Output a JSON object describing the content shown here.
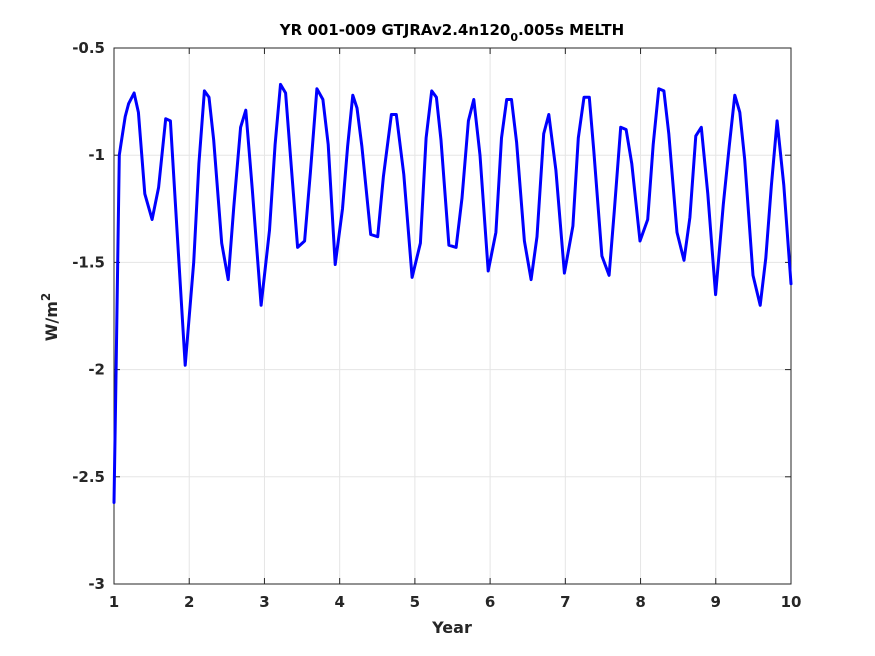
{
  "chart_data": {
    "type": "line",
    "title_main": "YR 001-009 GTJRAv2.4n120",
    "title_sub": "0",
    "title_tail": ".005s MELTH",
    "xlabel": "Year",
    "ylabel_base": "W/m",
    "ylabel_sup": "2",
    "xlim": [
      1,
      10
    ],
    "ylim": [
      -3,
      -0.5
    ],
    "x_ticks": [
      1,
      2,
      3,
      4,
      5,
      6,
      7,
      8,
      9,
      10
    ],
    "x_tick_labels": [
      "1",
      "2",
      "3",
      "4",
      "5",
      "6",
      "7",
      "8",
      "9",
      "10"
    ],
    "y_ticks": [
      -3,
      -2.5,
      -2,
      -1.5,
      -1,
      -0.5
    ],
    "y_tick_labels": [
      "-3",
      "-2.5",
      "-2",
      "-1.5",
      "-1",
      "-0.5"
    ],
    "grid": true,
    "colors": {
      "line": "#0000ff",
      "grid": "#e5e5e5",
      "axis": "#262626"
    },
    "series": [
      {
        "x": [
          1.0,
          1.028,
          1.071,
          1.092,
          1.149,
          1.194,
          1.267,
          1.324,
          1.41,
          1.507,
          1.593,
          1.687,
          1.75,
          1.838,
          1.947,
          2.059,
          2.128,
          2.202,
          2.263,
          2.326,
          2.432,
          2.518,
          2.593,
          2.683,
          2.752,
          2.839,
          2.956,
          3.067,
          3.142,
          3.213,
          3.281,
          3.345,
          3.441,
          3.534,
          3.611,
          3.697,
          3.777,
          3.847,
          3.94,
          4.038,
          4.105,
          4.174,
          4.231,
          4.295,
          4.413,
          4.505,
          4.582,
          4.688,
          4.753,
          4.852,
          4.963,
          5.073,
          5.149,
          5.223,
          5.286,
          5.347,
          5.452,
          5.548,
          5.626,
          5.712,
          5.783,
          5.866,
          5.974,
          6.077,
          6.151,
          6.221,
          6.285,
          6.352,
          6.456,
          6.545,
          6.624,
          6.713,
          6.78,
          6.875,
          6.988,
          7.101,
          7.172,
          7.248,
          7.318,
          7.378,
          7.486,
          7.582,
          7.651,
          7.736,
          7.808,
          7.884,
          7.993,
          8.095,
          8.168,
          8.242,
          8.311,
          8.375,
          8.485,
          8.578,
          8.656,
          8.734,
          8.808,
          8.894,
          8.998,
          9.1,
          9.178,
          9.253,
          9.32,
          9.384,
          9.495,
          9.591,
          9.665,
          9.74,
          9.815,
          9.904,
          10.0
        ],
        "y": [
          -2.62,
          -2.0,
          -1.0,
          -0.95,
          -0.82,
          -0.76,
          -0.71,
          -0.8,
          -1.18,
          -1.3,
          -1.15,
          -0.83,
          -0.84,
          -1.35,
          -1.98,
          -1.5,
          -1.04,
          -0.7,
          -0.73,
          -0.93,
          -1.41,
          -1.58,
          -1.24,
          -0.87,
          -0.79,
          -1.16,
          -1.7,
          -1.35,
          -0.95,
          -0.67,
          -0.71,
          -1.0,
          -1.43,
          -1.4,
          -1.08,
          -0.69,
          -0.74,
          -0.95,
          -1.51,
          -1.25,
          -0.96,
          -0.72,
          -0.78,
          -0.96,
          -1.37,
          -1.38,
          -1.1,
          -0.81,
          -0.81,
          -1.09,
          -1.57,
          -1.41,
          -0.92,
          -0.7,
          -0.73,
          -0.93,
          -1.42,
          -1.43,
          -1.2,
          -0.84,
          -0.74,
          -1.0,
          -1.54,
          -1.36,
          -0.92,
          -0.74,
          -0.74,
          -0.94,
          -1.4,
          -1.58,
          -1.38,
          -0.9,
          -0.81,
          -1.07,
          -1.55,
          -1.33,
          -0.92,
          -0.73,
          -0.73,
          -0.98,
          -1.47,
          -1.56,
          -1.26,
          -0.87,
          -0.88,
          -1.04,
          -1.4,
          -1.3,
          -0.95,
          -0.69,
          -0.7,
          -0.9,
          -1.36,
          -1.49,
          -1.29,
          -0.91,
          -0.87,
          -1.18,
          -1.65,
          -1.23,
          -0.96,
          -0.72,
          -0.8,
          -1.02,
          -1.56,
          -1.7,
          -1.48,
          -1.14,
          -0.84,
          -1.14,
          -1.6
        ]
      }
    ]
  }
}
